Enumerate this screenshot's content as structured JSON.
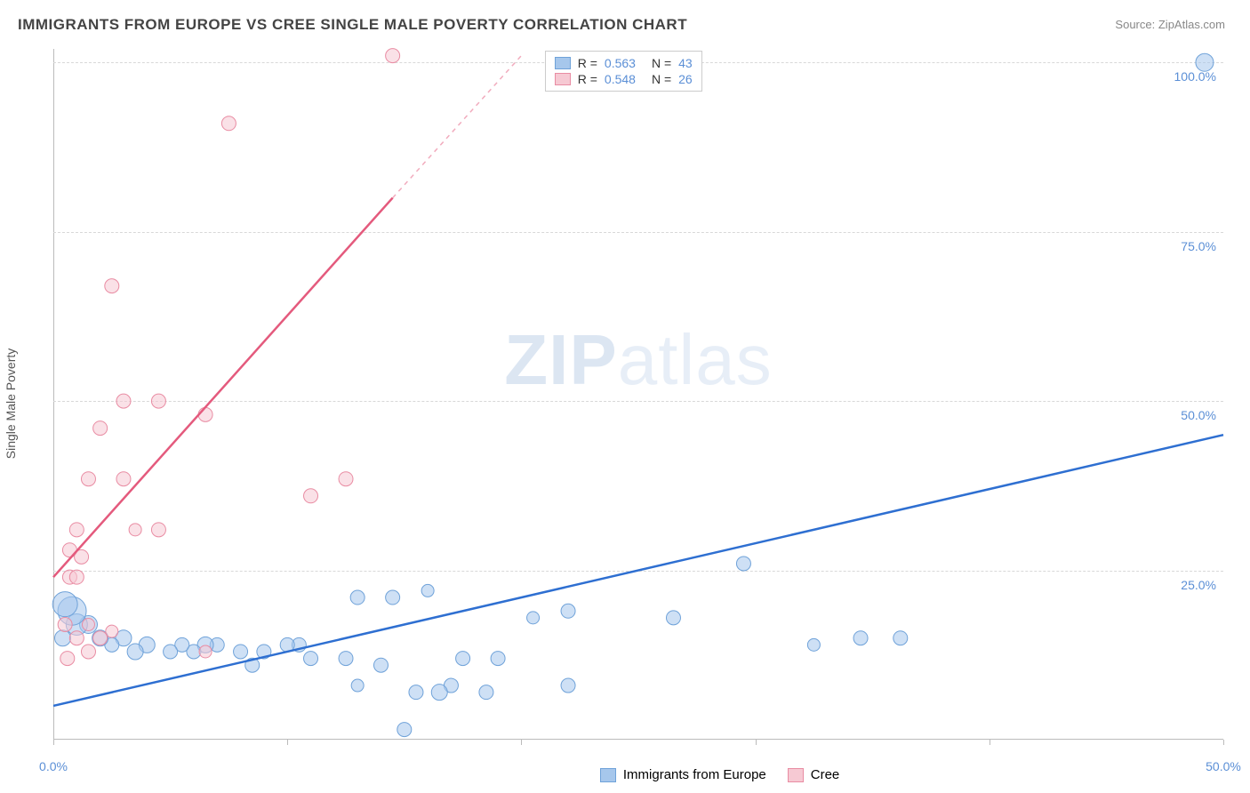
{
  "title": "IMMIGRANTS FROM EUROPE VS CREE SINGLE MALE POVERTY CORRELATION CHART",
  "source_label": "Source:",
  "source_name": "ZipAtlas.com",
  "watermark_a": "ZIP",
  "watermark_b": "atlas",
  "y_axis_label": "Single Male Poverty",
  "chart": {
    "type": "scatter",
    "background_color": "#ffffff",
    "grid_color": "#d8d8d8",
    "axis_color": "#bbbbbb",
    "tick_label_color": "#5b8fd6",
    "xlim": [
      0,
      50
    ],
    "ylim": [
      0,
      102
    ],
    "x_ticks": [
      0,
      10,
      20,
      30,
      40,
      50
    ],
    "x_tick_labels": {
      "0": "0.0%",
      "50": "50.0%"
    },
    "y_ticks": [
      25,
      50,
      75,
      100
    ],
    "y_tick_labels": {
      "25": "25.0%",
      "50": "50.0%",
      "75": "75.0%",
      "100": "100.0%"
    },
    "series": [
      {
        "name": "Immigrants from Europe",
        "short": "europe",
        "marker_color": "#a6c7ec",
        "marker_border": "#6fa2d9",
        "line_color": "#2e6fd1",
        "r_value": "0.563",
        "n_value": "43",
        "trend": {
          "x1": 0,
          "y1": 5,
          "x2": 50,
          "y2": 45
        },
        "points": [
          {
            "x": 49.2,
            "y": 100,
            "r": 10
          },
          {
            "x": 29.5,
            "y": 26,
            "r": 8
          },
          {
            "x": 34.5,
            "y": 15,
            "r": 8
          },
          {
            "x": 36.2,
            "y": 15,
            "r": 8
          },
          {
            "x": 32.5,
            "y": 14,
            "r": 7
          },
          {
            "x": 26.5,
            "y": 18,
            "r": 8
          },
          {
            "x": 22,
            "y": 19,
            "r": 8
          },
          {
            "x": 20.5,
            "y": 18,
            "r": 7
          },
          {
            "x": 22,
            "y": 8,
            "r": 8
          },
          {
            "x": 19,
            "y": 12,
            "r": 8
          },
          {
            "x": 18.5,
            "y": 7,
            "r": 8
          },
          {
            "x": 17.5,
            "y": 12,
            "r": 8
          },
          {
            "x": 17,
            "y": 8,
            "r": 8
          },
          {
            "x": 16.5,
            "y": 7,
            "r": 9
          },
          {
            "x": 16,
            "y": 22,
            "r": 7
          },
          {
            "x": 15.5,
            "y": 7,
            "r": 8
          },
          {
            "x": 15,
            "y": 1.5,
            "r": 8
          },
          {
            "x": 14.5,
            "y": 21,
            "r": 8
          },
          {
            "x": 14,
            "y": 11,
            "r": 8
          },
          {
            "x": 13,
            "y": 21,
            "r": 8
          },
          {
            "x": 13,
            "y": 8,
            "r": 7
          },
          {
            "x": 12.5,
            "y": 12,
            "r": 8
          },
          {
            "x": 11,
            "y": 12,
            "r": 8
          },
          {
            "x": 10.5,
            "y": 14,
            "r": 8
          },
          {
            "x": 10,
            "y": 14,
            "r": 8
          },
          {
            "x": 9,
            "y": 13,
            "r": 8
          },
          {
            "x": 8.5,
            "y": 11,
            "r": 8
          },
          {
            "x": 8,
            "y": 13,
            "r": 8
          },
          {
            "x": 7,
            "y": 14,
            "r": 8
          },
          {
            "x": 6.5,
            "y": 14,
            "r": 9
          },
          {
            "x": 6,
            "y": 13,
            "r": 8
          },
          {
            "x": 5.5,
            "y": 14,
            "r": 8
          },
          {
            "x": 5,
            "y": 13,
            "r": 8
          },
          {
            "x": 4,
            "y": 14,
            "r": 9
          },
          {
            "x": 3.5,
            "y": 13,
            "r": 9
          },
          {
            "x": 3,
            "y": 15,
            "r": 9
          },
          {
            "x": 2.5,
            "y": 14,
            "r": 8
          },
          {
            "x": 2,
            "y": 15,
            "r": 9
          },
          {
            "x": 1.5,
            "y": 17,
            "r": 10
          },
          {
            "x": 1,
            "y": 17,
            "r": 12
          },
          {
            "x": 0.8,
            "y": 19,
            "r": 16
          },
          {
            "x": 0.5,
            "y": 20,
            "r": 14
          },
          {
            "x": 0.4,
            "y": 15,
            "r": 9
          }
        ]
      },
      {
        "name": "Cree",
        "short": "cree",
        "marker_color": "#f6c9d3",
        "marker_border": "#e98ca3",
        "line_color": "#e45a7d",
        "r_value": "0.548",
        "n_value": "26",
        "trend": {
          "x1": 0,
          "y1": 24,
          "x2": 14.5,
          "y2": 80
        },
        "trend_dashed": {
          "x1": 14.5,
          "y1": 80,
          "x2": 20,
          "y2": 101
        },
        "points": [
          {
            "x": 14.5,
            "y": 101,
            "r": 8
          },
          {
            "x": 7.5,
            "y": 91,
            "r": 8
          },
          {
            "x": 2.5,
            "y": 67,
            "r": 8
          },
          {
            "x": 3,
            "y": 50,
            "r": 8
          },
          {
            "x": 4.5,
            "y": 50,
            "r": 8
          },
          {
            "x": 6.5,
            "y": 48,
            "r": 8
          },
          {
            "x": 2,
            "y": 46,
            "r": 8
          },
          {
            "x": 1.5,
            "y": 38.5,
            "r": 8
          },
          {
            "x": 3,
            "y": 38.5,
            "r": 8
          },
          {
            "x": 12.5,
            "y": 38.5,
            "r": 8
          },
          {
            "x": 11,
            "y": 36,
            "r": 8
          },
          {
            "x": 1,
            "y": 31,
            "r": 8
          },
          {
            "x": 3.5,
            "y": 31,
            "r": 7
          },
          {
            "x": 4.5,
            "y": 31,
            "r": 8
          },
          {
            "x": 0.7,
            "y": 28,
            "r": 8
          },
          {
            "x": 1.2,
            "y": 27,
            "r": 8
          },
          {
            "x": 0.7,
            "y": 24,
            "r": 8
          },
          {
            "x": 1,
            "y": 24,
            "r": 8
          },
          {
            "x": 0.5,
            "y": 17,
            "r": 8
          },
          {
            "x": 1.5,
            "y": 17,
            "r": 7
          },
          {
            "x": 1,
            "y": 15,
            "r": 8
          },
          {
            "x": 2,
            "y": 15,
            "r": 8
          },
          {
            "x": 1.5,
            "y": 13,
            "r": 8
          },
          {
            "x": 0.6,
            "y": 12,
            "r": 8
          },
          {
            "x": 6.5,
            "y": 13,
            "r": 7
          },
          {
            "x": 2.5,
            "y": 16,
            "r": 7
          }
        ]
      }
    ]
  },
  "legend_bottom": [
    {
      "label": "Immigrants from Europe",
      "fill": "#a6c7ec",
      "border": "#6fa2d9"
    },
    {
      "label": "Cree",
      "fill": "#f6c9d3",
      "border": "#e98ca3"
    }
  ]
}
